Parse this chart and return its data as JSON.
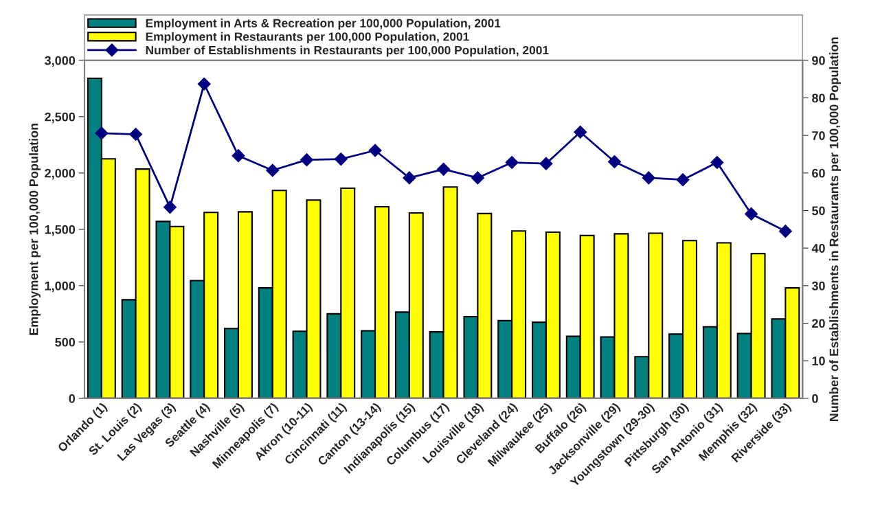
{
  "chart_data": {
    "type": "bar",
    "categories": [
      "Orlando (1)",
      "St. Louis (2)",
      "Las Vegas (3)",
      "Seattle (4)",
      "Nashville (5)",
      "Minneapolis (7)",
      "Akron (10-11)",
      "Cincinnati (11)",
      "Canton (13-14)",
      "Indianapolis (15)",
      "Columbus (17)",
      "Louisville (18)",
      "Cleveland (24)",
      "Milwaukee (25)",
      "Buffalo (26)",
      "Jacksonville (29)",
      "Youngstown (29-30)",
      "Pittsburgh (30)",
      "San Antonio (31)",
      "Memphis (32)",
      "Riverside (33)"
    ],
    "series": [
      {
        "name": "Employment in Arts & Recreation per 100,000 Population, 2001",
        "color": "#008080",
        "values": [
          2840,
          875,
          1570,
          1045,
          620,
          980,
          595,
          750,
          600,
          765,
          590,
          725,
          690,
          675,
          550,
          545,
          370,
          570,
          635,
          575,
          705
        ]
      },
      {
        "name": "Employment in Restaurants per 100,000 Population, 2001",
        "color": "#ffff00",
        "values": [
          2125,
          2035,
          1525,
          1650,
          1655,
          1845,
          1760,
          1865,
          1700,
          1645,
          1875,
          1640,
          1485,
          1475,
          1445,
          1460,
          1465,
          1400,
          1380,
          1285,
          980
        ]
      },
      {
        "name": "Number of Establishments in Restaurants per 100,000 Population, 2001",
        "color": "#000080",
        "type": "line",
        "axis": "y2",
        "marker": "diamond",
        "values": [
          70.6,
          70.3,
          50.9,
          83.7,
          64.6,
          60.7,
          63.5,
          63.7,
          66.0,
          58.7,
          61.0,
          58.7,
          62.8,
          62.5,
          70.9,
          63.0,
          58.7,
          58.2,
          62.8,
          49.1,
          44.5
        ]
      }
    ],
    "ylabel": "Employment per 100,000 Population",
    "y2label": "Number of Establishments in Restaurants per 100,000 Population",
    "ylim": [
      0,
      3000
    ],
    "yticks": [
      0,
      500,
      {
        "value": 1000,
        "label": "1,000"
      },
      {
        "value": 1500,
        "label": "1,500"
      },
      {
        "value": 2000,
        "label": "2,000"
      },
      {
        "value": 2500,
        "label": "2,500"
      },
      {
        "value": 3000,
        "label": "3,000"
      }
    ],
    "y2lim": [
      0,
      90
    ],
    "y2ticks": [
      0,
      10,
      20,
      30,
      40,
      50,
      60,
      70,
      80,
      90
    ],
    "legend": "top",
    "grid": false
  }
}
